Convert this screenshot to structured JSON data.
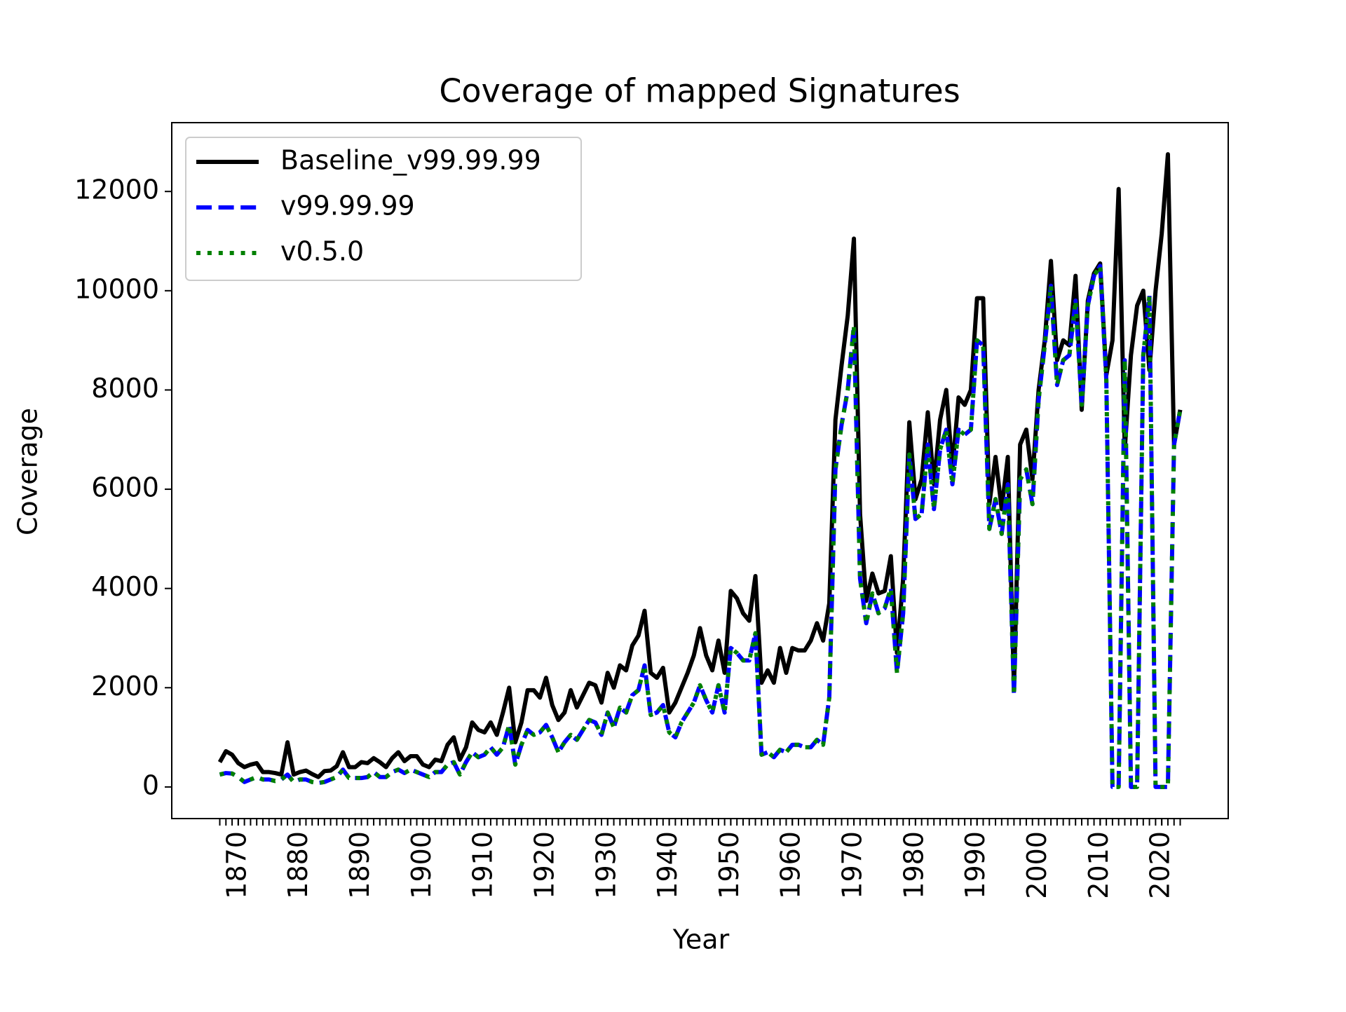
{
  "chart_data": {
    "type": "line",
    "title": "Coverage of mapped Signatures",
    "xlabel": "Year",
    "ylabel": "Coverage",
    "x": [
      1867,
      1868,
      1869,
      1870,
      1871,
      1872,
      1873,
      1874,
      1875,
      1876,
      1877,
      1878,
      1879,
      1880,
      1881,
      1882,
      1883,
      1884,
      1885,
      1886,
      1887,
      1888,
      1889,
      1890,
      1891,
      1892,
      1893,
      1894,
      1895,
      1896,
      1897,
      1898,
      1899,
      1900,
      1901,
      1902,
      1903,
      1904,
      1905,
      1906,
      1907,
      1908,
      1909,
      1910,
      1911,
      1912,
      1913,
      1914,
      1915,
      1916,
      1917,
      1918,
      1919,
      1920,
      1921,
      1922,
      1923,
      1924,
      1925,
      1926,
      1927,
      1928,
      1929,
      1930,
      1931,
      1932,
      1933,
      1934,
      1935,
      1936,
      1937,
      1938,
      1939,
      1940,
      1941,
      1942,
      1943,
      1944,
      1945,
      1946,
      1947,
      1948,
      1949,
      1950,
      1951,
      1952,
      1953,
      1954,
      1955,
      1956,
      1957,
      1958,
      1959,
      1960,
      1961,
      1962,
      1963,
      1964,
      1965,
      1966,
      1967,
      1968,
      1969,
      1970,
      1971,
      1972,
      1973,
      1974,
      1975,
      1976,
      1977,
      1978,
      1979,
      1980,
      1981,
      1982,
      1983,
      1984,
      1985,
      1986,
      1987,
      1988,
      1989,
      1990,
      1991,
      1992,
      1993,
      1994,
      1995,
      1996,
      1997,
      1998,
      1999,
      2000,
      2001,
      2002,
      2003,
      2004,
      2005,
      2006,
      2007,
      2008,
      2009,
      2010,
      2011,
      2012,
      2013,
      2014,
      2015,
      2016,
      2017,
      2018,
      2019,
      2020,
      2021,
      2022,
      2023
    ],
    "series": [
      {
        "name": "Baseline_v99.99.99",
        "color": "#000000",
        "linestyle": "solid",
        "values": [
          500,
          720,
          650,
          480,
          400,
          450,
          480,
          300,
          300,
          280,
          250,
          900,
          250,
          300,
          330,
          260,
          200,
          320,
          330,
          420,
          700,
          400,
          400,
          500,
          480,
          580,
          500,
          400,
          580,
          700,
          520,
          620,
          620,
          450,
          400,
          550,
          520,
          850,
          1000,
          550,
          800,
          1300,
          1150,
          1100,
          1300,
          1050,
          1500,
          2000,
          900,
          1300,
          1950,
          1950,
          1800,
          2200,
          1650,
          1350,
          1500,
          1950,
          1600,
          1850,
          2100,
          2050,
          1700,
          2300,
          2000,
          2450,
          2350,
          2850,
          3050,
          3550,
          2300,
          2200,
          2400,
          1500,
          1700,
          2000,
          2300,
          2650,
          3200,
          2650,
          2350,
          2950,
          2300,
          3950,
          3800,
          3500,
          3350,
          4250,
          2100,
          2350,
          2100,
          2800,
          2300,
          2800,
          2750,
          2750,
          2950,
          3300,
          2950,
          3700,
          7400,
          8500,
          9500,
          11050,
          5500,
          3750,
          4300,
          3900,
          3950,
          4650,
          2700,
          4200,
          7350,
          5800,
          6200,
          7550,
          6100,
          7400,
          8000,
          6400,
          7850,
          7700,
          8000,
          9850,
          9850,
          5700,
          6650,
          5600,
          6650,
          2000,
          6900,
          7200,
          6200,
          8000,
          9000,
          10600,
          8600,
          9000,
          8900,
          10300,
          7600,
          9800,
          10350,
          10550,
          8300,
          9000,
          12050,
          6800,
          8700,
          9700,
          10000,
          8400,
          10000,
          11150,
          12750,
          6900,
          7600
        ]
      },
      {
        "name": "v99.99.99",
        "color": "#0000ff",
        "linestyle": "dashed",
        "values": [
          250,
          280,
          270,
          200,
          100,
          150,
          200,
          150,
          150,
          120,
          150,
          250,
          100,
          150,
          150,
          100,
          80,
          100,
          150,
          200,
          350,
          180,
          180,
          180,
          200,
          300,
          200,
          200,
          300,
          350,
          280,
          350,
          300,
          250,
          200,
          300,
          300,
          450,
          500,
          250,
          500,
          700,
          600,
          650,
          800,
          650,
          800,
          1250,
          450,
          850,
          1150,
          1050,
          1100,
          1250,
          1000,
          700,
          900,
          1050,
          950,
          1150,
          1350,
          1300,
          1050,
          1500,
          1200,
          1600,
          1500,
          1850,
          1950,
          2450,
          1450,
          1500,
          1650,
          1100,
          1000,
          1300,
          1500,
          1700,
          2050,
          1750,
          1500,
          2050,
          1500,
          2800,
          2700,
          2550,
          2550,
          3100,
          650,
          700,
          600,
          750,
          700,
          850,
          850,
          800,
          800,
          950,
          850,
          1800,
          6400,
          7300,
          8000,
          9300,
          4200,
          3300,
          3900,
          3500,
          3600,
          4000,
          2300,
          3500,
          6700,
          5400,
          5500,
          6900,
          5600,
          6800,
          7200,
          6100,
          7200,
          7100,
          7200,
          9000,
          8900,
          5200,
          5800,
          5100,
          6100,
          1850,
          6200,
          6400,
          5700,
          7800,
          8900,
          10100,
          8100,
          8600,
          8700,
          9800,
          7700,
          9700,
          10300,
          10500,
          8200,
          0,
          0,
          8600,
          0,
          0,
          8700,
          9900,
          0,
          0,
          0,
          6900,
          7600
        ]
      },
      {
        "name": "v0.5.0",
        "color": "#008000",
        "linestyle": "dotted",
        "values": [
          250,
          280,
          270,
          200,
          100,
          150,
          200,
          150,
          150,
          120,
          150,
          250,
          100,
          150,
          150,
          100,
          80,
          100,
          150,
          200,
          350,
          180,
          180,
          180,
          200,
          300,
          200,
          200,
          300,
          350,
          280,
          350,
          300,
          250,
          200,
          300,
          300,
          450,
          500,
          250,
          500,
          700,
          600,
          650,
          800,
          650,
          800,
          1250,
          450,
          850,
          1150,
          1050,
          1100,
          1250,
          1000,
          700,
          900,
          1050,
          950,
          1150,
          1350,
          1300,
          1050,
          1500,
          1200,
          1600,
          1500,
          1850,
          1950,
          2450,
          1450,
          1500,
          1650,
          1100,
          1000,
          1300,
          1500,
          1700,
          2050,
          1750,
          1500,
          2050,
          1500,
          2800,
          2700,
          2550,
          2550,
          3100,
          650,
          700,
          600,
          750,
          700,
          850,
          850,
          800,
          800,
          950,
          850,
          1800,
          6400,
          7300,
          8000,
          9300,
          4200,
          3300,
          3900,
          3500,
          3600,
          4000,
          2300,
          3500,
          6700,
          5400,
          5500,
          6900,
          5600,
          6800,
          7200,
          6100,
          7200,
          7100,
          7200,
          9000,
          8900,
          5200,
          5800,
          5100,
          6100,
          1850,
          6200,
          6400,
          5700,
          7800,
          8900,
          10100,
          8100,
          8600,
          8700,
          9800,
          7700,
          9700,
          10300,
          10500,
          8200,
          0,
          0,
          8600,
          0,
          0,
          8700,
          9900,
          0,
          0,
          0,
          6900,
          7600
        ]
      }
    ],
    "xlim": [
      1859.2,
      2030.8
    ],
    "xticks": [
      1870,
      1880,
      1890,
      1900,
      1910,
      1920,
      1930,
      1940,
      1950,
      1960,
      1970,
      1980,
      1990,
      2000,
      2010,
      2020
    ],
    "ylim": [
      -637,
      13387
    ],
    "yticks": [
      0,
      2000,
      4000,
      6000,
      8000,
      10000,
      12000
    ],
    "legend": "upper left",
    "grid": false
  }
}
